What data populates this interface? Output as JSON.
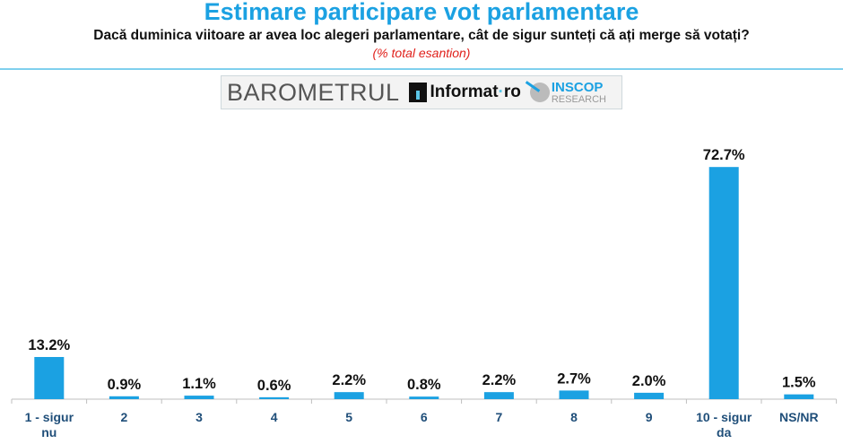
{
  "header": {
    "title": "Estimare participare vot parlamentare",
    "subtitle": "Dacă duminica viitoare ar avea loc alegeri parlamentare, cât de sigur sunteți că ați merge să votați?",
    "note": "(% total esantion)"
  },
  "logo": {
    "barometru": "BAROMETRUL",
    "informat": "Informat",
    "informat_dot": "·",
    "informat_ro": "ro",
    "inscop": "INSCOP",
    "research": "RESEARCH"
  },
  "chart_data": {
    "type": "bar",
    "title": "Estimare participare vot parlamentare",
    "categories": [
      [
        "1 - sigur",
        "nu"
      ],
      [
        "2"
      ],
      [
        "3"
      ],
      [
        "4"
      ],
      [
        "5"
      ],
      [
        "6"
      ],
      [
        "7"
      ],
      [
        "8"
      ],
      [
        "9"
      ],
      [
        "10 - sigur",
        "da"
      ],
      [
        "NS/NR"
      ]
    ],
    "values": [
      13.2,
      0.9,
      1.1,
      0.6,
      2.2,
      0.8,
      2.2,
      2.7,
      2.0,
      72.7,
      1.5
    ],
    "labels": [
      "13.2%",
      "0.9%",
      "1.1%",
      "0.6%",
      "2.2%",
      "0.8%",
      "2.2%",
      "2.7%",
      "2.0%",
      "72.7%",
      "1.5%"
    ],
    "unit": "%",
    "ylim": [
      0,
      80
    ],
    "grid": false,
    "color": "#1ba1e2"
  }
}
